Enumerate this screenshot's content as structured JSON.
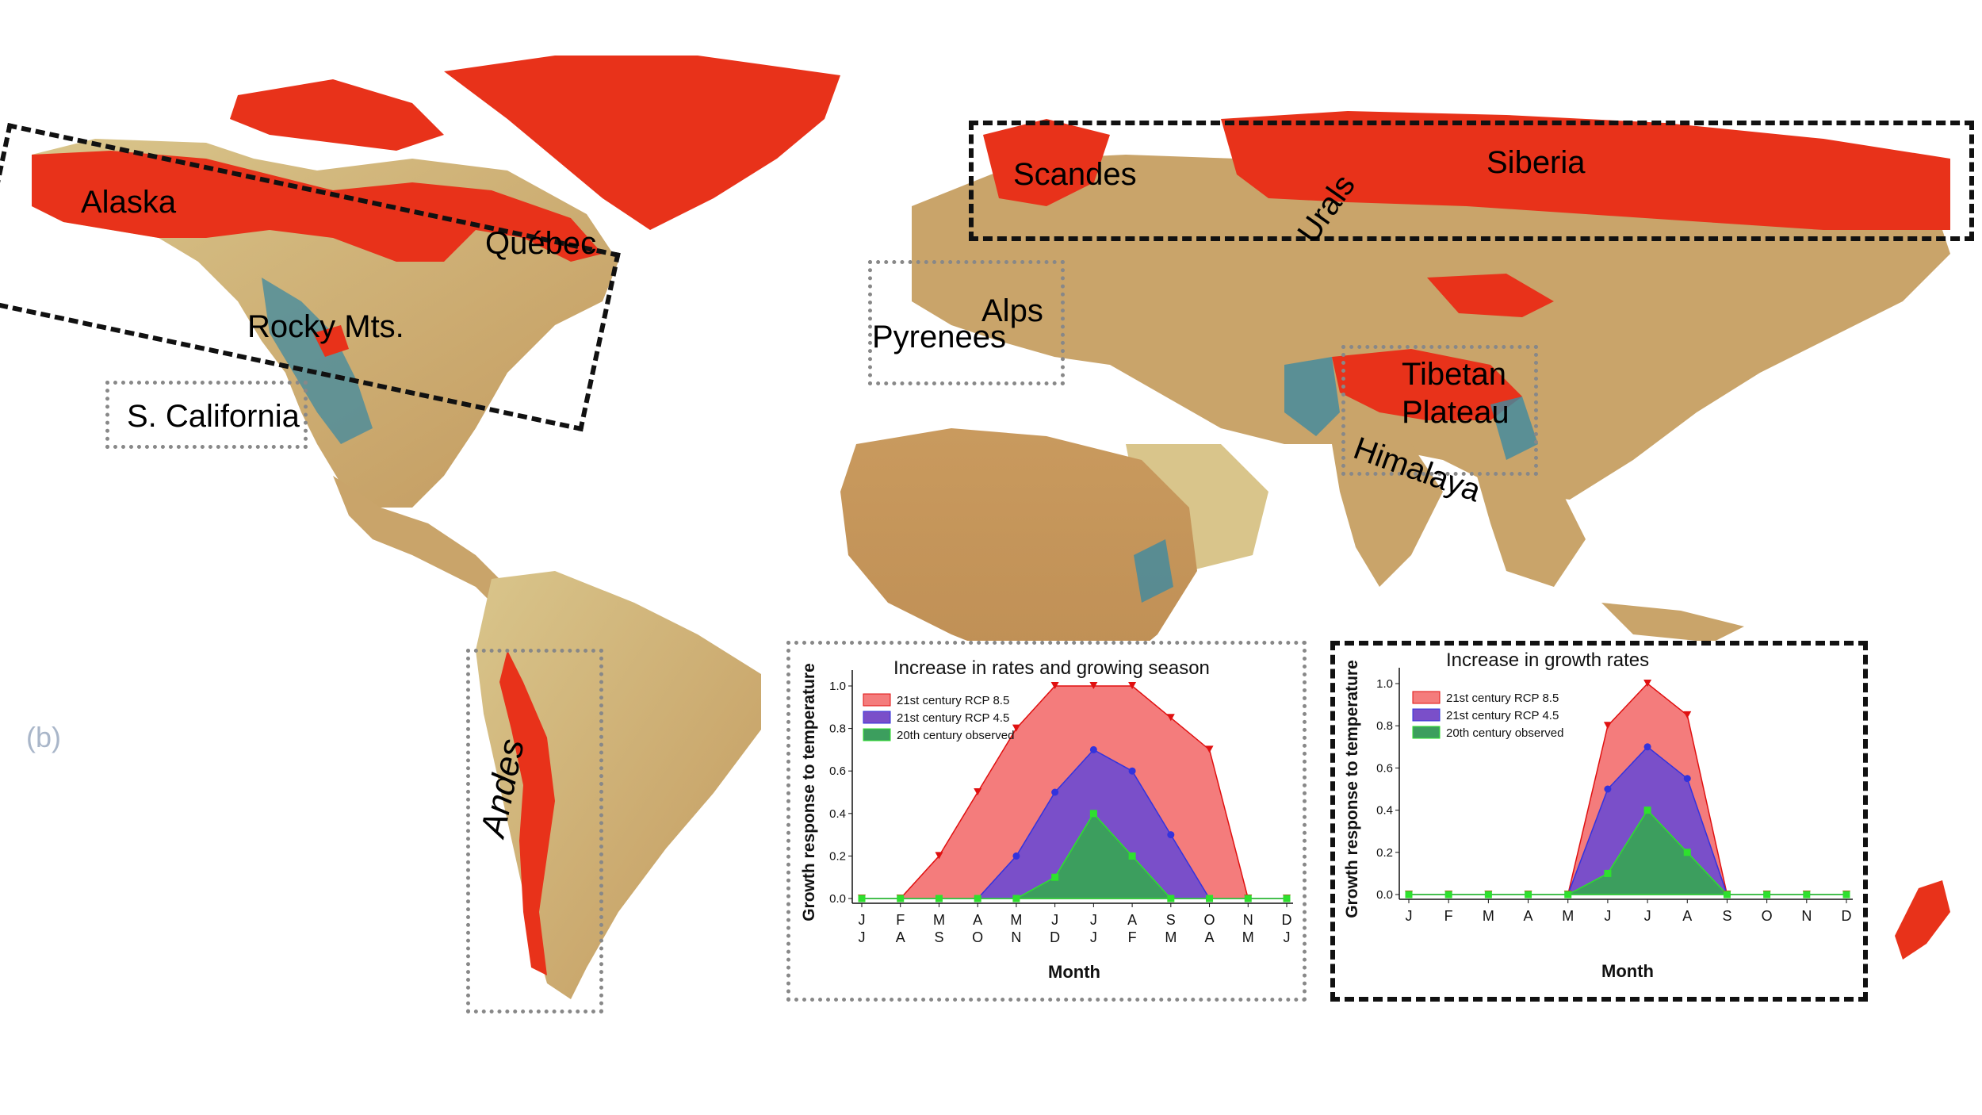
{
  "map": {
    "panel_tag": "(b)",
    "regions": [
      {
        "id": "alaska",
        "label": "Alaska"
      },
      {
        "id": "quebec",
        "label": "Québec"
      },
      {
        "id": "rocky",
        "label": "Rocky Mts."
      },
      {
        "id": "scal",
        "label": "S. California"
      },
      {
        "id": "andes",
        "label": "Andes"
      },
      {
        "id": "scandes",
        "label": "Scandes"
      },
      {
        "id": "urals",
        "label": "Urals"
      },
      {
        "id": "siberia",
        "label": "Siberia"
      },
      {
        "id": "alps",
        "label": "Alps"
      },
      {
        "id": "pyrenees",
        "label": "Pyrenees"
      },
      {
        "id": "tibet1",
        "label": "Tibetan"
      },
      {
        "id": "tibet2",
        "label": "Plateau"
      },
      {
        "id": "himalaya",
        "label": "Himalaya"
      }
    ],
    "colors": {
      "highlight": "#e8321a",
      "lowland": "#c9a46a",
      "midland": "#e4d7a3",
      "highland": "#3f8aa0"
    }
  },
  "chart_data": [
    {
      "type": "area",
      "title": "Increase in rates and growing season",
      "xlabel": "Month",
      "ylabel": "Growth response to temperature",
      "x_top": [
        "J",
        "F",
        "M",
        "A",
        "M",
        "J",
        "J",
        "A",
        "S",
        "O",
        "N",
        "D"
      ],
      "x_bottom": [
        "J",
        "A",
        "S",
        "O",
        "N",
        "D",
        "J",
        "F",
        "M",
        "A",
        "M",
        "J"
      ],
      "yticks": [
        "0.0",
        "0.2",
        "0.4",
        "0.6",
        "0.8",
        "1.0"
      ],
      "ylim": [
        0,
        1.0
      ],
      "legend_position": "top-left",
      "series": [
        {
          "name": "21st century RCP 8.5",
          "color": "#f47c7c",
          "line": "#e01010",
          "marker": "triangle-down",
          "values": [
            0,
            0,
            0.2,
            0.5,
            0.8,
            1.0,
            1.0,
            1.0,
            0.85,
            0.7,
            0,
            0
          ]
        },
        {
          "name": "21st century RCP 4.5",
          "color": "#7a4fc9",
          "line": "#3333dd",
          "marker": "circle",
          "values": [
            0,
            0,
            0,
            0,
            0.2,
            0.5,
            0.7,
            0.6,
            0.3,
            0,
            0,
            0
          ]
        },
        {
          "name": "20th century observed",
          "color": "#3c9e5e",
          "line": "#2ee02e",
          "marker": "square",
          "values": [
            0,
            0,
            0,
            0,
            0,
            0.1,
            0.4,
            0.2,
            0,
            0,
            0,
            0
          ]
        }
      ]
    },
    {
      "type": "area",
      "title": "Increase in growth rates",
      "xlabel": "Month",
      "ylabel": "Growth response to temperature",
      "x_top": [
        "J",
        "F",
        "M",
        "A",
        "M",
        "J",
        "J",
        "A",
        "S",
        "O",
        "N",
        "D"
      ],
      "yticks": [
        "0.0",
        "0.2",
        "0.4",
        "0.6",
        "0.8",
        "1.0"
      ],
      "ylim": [
        0,
        1.0
      ],
      "legend_position": "top-left",
      "series": [
        {
          "name": "21st century RCP 8.5",
          "color": "#f47c7c",
          "line": "#e01010",
          "marker": "triangle-down",
          "values": [
            0,
            0,
            0,
            0,
            0,
            0.8,
            1.0,
            0.85,
            0,
            0,
            0,
            0
          ]
        },
        {
          "name": "21st century RCP 4.5",
          "color": "#7a4fc9",
          "line": "#3333dd",
          "marker": "circle",
          "values": [
            0,
            0,
            0,
            0,
            0,
            0.5,
            0.7,
            0.55,
            0,
            0,
            0,
            0
          ]
        },
        {
          "name": "20th century observed",
          "color": "#3c9e5e",
          "line": "#2ee02e",
          "marker": "square",
          "values": [
            0,
            0,
            0,
            0,
            0,
            0.1,
            0.4,
            0.2,
            0,
            0,
            0,
            0
          ]
        }
      ]
    }
  ]
}
